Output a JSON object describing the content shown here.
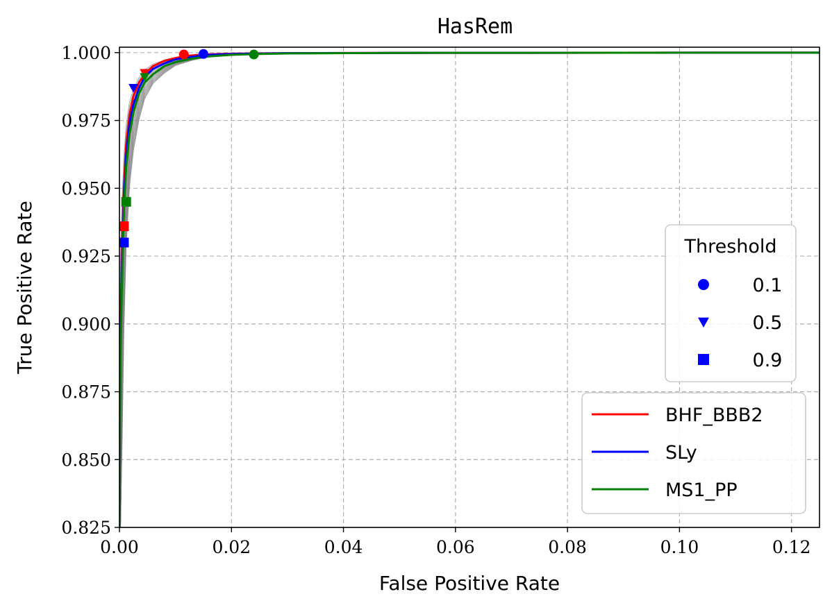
{
  "chart_data": {
    "type": "line",
    "title": "HasRem",
    "xlabel": "False Positive Rate",
    "ylabel": "True Positive Rate",
    "xlim": [
      0.0,
      0.125
    ],
    "ylim": [
      0.825,
      1.002
    ],
    "xticks": [
      0.0,
      0.02,
      0.04,
      0.06,
      0.08,
      0.1,
      0.12
    ],
    "xtick_labels": [
      "0.00",
      "0.02",
      "0.04",
      "0.06",
      "0.08",
      "0.10",
      "0.12"
    ],
    "yticks": [
      0.825,
      0.85,
      0.875,
      0.9,
      0.925,
      0.95,
      0.975,
      1.0
    ],
    "ytick_labels": [
      "0.825",
      "0.850",
      "0.875",
      "0.900",
      "0.925",
      "0.950",
      "0.975",
      "1.000"
    ],
    "grid": true,
    "series": [
      {
        "name": "BHF_BBB2",
        "color": "#ff0000",
        "x": [
          0.0,
          0.0002,
          0.0005,
          0.0008,
          0.0012,
          0.0018,
          0.0025,
          0.0035,
          0.0045,
          0.006,
          0.008,
          0.01,
          0.012,
          0.015,
          0.02,
          0.03,
          0.05,
          0.125
        ],
        "y": [
          0.825,
          0.9,
          0.93,
          0.95,
          0.966,
          0.977,
          0.984,
          0.989,
          0.992,
          0.995,
          0.997,
          0.998,
          0.9988,
          0.9993,
          0.9996,
          0.9998,
          0.9999,
          1.0
        ]
      },
      {
        "name": "SLy",
        "color": "#0000ff",
        "x": [
          0.0,
          0.0002,
          0.0005,
          0.0008,
          0.0012,
          0.0018,
          0.0025,
          0.0035,
          0.0045,
          0.006,
          0.008,
          0.01,
          0.013,
          0.016,
          0.02,
          0.03,
          0.05,
          0.125
        ],
        "y": [
          0.825,
          0.895,
          0.925,
          0.946,
          0.962,
          0.974,
          0.981,
          0.987,
          0.991,
          0.994,
          0.996,
          0.9975,
          0.9985,
          0.9992,
          0.9995,
          0.9998,
          0.9999,
          1.0
        ]
      },
      {
        "name": "MS1_PP",
        "color": "#008000",
        "x": [
          0.0,
          0.0002,
          0.0005,
          0.0008,
          0.0012,
          0.0018,
          0.0025,
          0.0035,
          0.0045,
          0.006,
          0.008,
          0.01,
          0.013,
          0.016,
          0.02,
          0.025,
          0.03,
          0.05,
          0.125
        ],
        "y": [
          0.825,
          0.89,
          0.92,
          0.942,
          0.958,
          0.97,
          0.978,
          0.985,
          0.989,
          0.992,
          0.995,
          0.9965,
          0.9978,
          0.9986,
          0.9992,
          0.9995,
          0.9997,
          0.9999,
          1.0
        ]
      }
    ],
    "threshold_markers": [
      {
        "series": "BHF_BBB2",
        "threshold": "0.1",
        "x": 0.0115,
        "y": 0.9993
      },
      {
        "series": "BHF_BBB2",
        "threshold": "0.5",
        "x": 0.0045,
        "y": 0.9925
      },
      {
        "series": "BHF_BBB2",
        "threshold": "0.9",
        "x": 0.0008,
        "y": 0.936
      },
      {
        "series": "SLy",
        "threshold": "0.1",
        "x": 0.015,
        "y": 0.9995
      },
      {
        "series": "SLy",
        "threshold": "0.5",
        "x": 0.0025,
        "y": 0.987
      },
      {
        "series": "SLy",
        "threshold": "0.9",
        "x": 0.0008,
        "y": 0.93
      },
      {
        "series": "MS1_PP",
        "threshold": "0.1",
        "x": 0.024,
        "y": 0.9993
      },
      {
        "series": "MS1_PP",
        "threshold": "0.5",
        "x": 0.0045,
        "y": 0.991
      },
      {
        "series": "MS1_PP",
        "threshold": "0.9",
        "x": 0.0012,
        "y": 0.945
      }
    ],
    "threshold_legend": {
      "title": "Threshold",
      "items": [
        {
          "label": "0.1",
          "marker": "circle"
        },
        {
          "label": "0.5",
          "marker": "triangle-down"
        },
        {
          "label": "0.9",
          "marker": "square"
        }
      ],
      "marker_color": "#0000ff",
      "placement": "center-right"
    },
    "series_legend_placement": "lower-right",
    "background_curves_color": "#808080",
    "background_curves_count": 20
  }
}
